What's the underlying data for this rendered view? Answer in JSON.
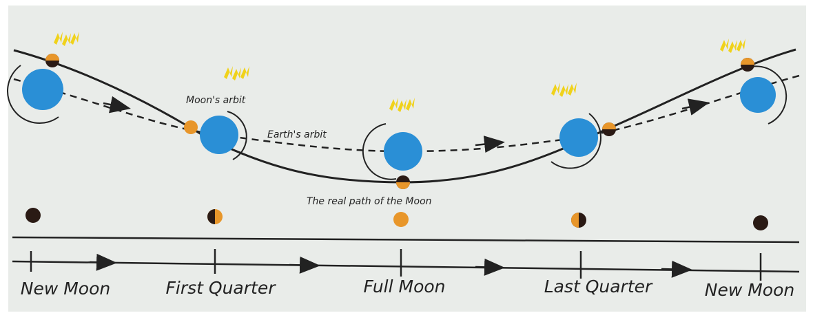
{
  "labels": {
    "moon_orbit": "Moon's arbit",
    "earth_orbit": "Earth's arbit",
    "real_path": "The real path of the Moon"
  },
  "phases": [
    "New Moon",
    "First Quarter",
    "Full Moon",
    "Last Quarter",
    "New Moon"
  ]
}
